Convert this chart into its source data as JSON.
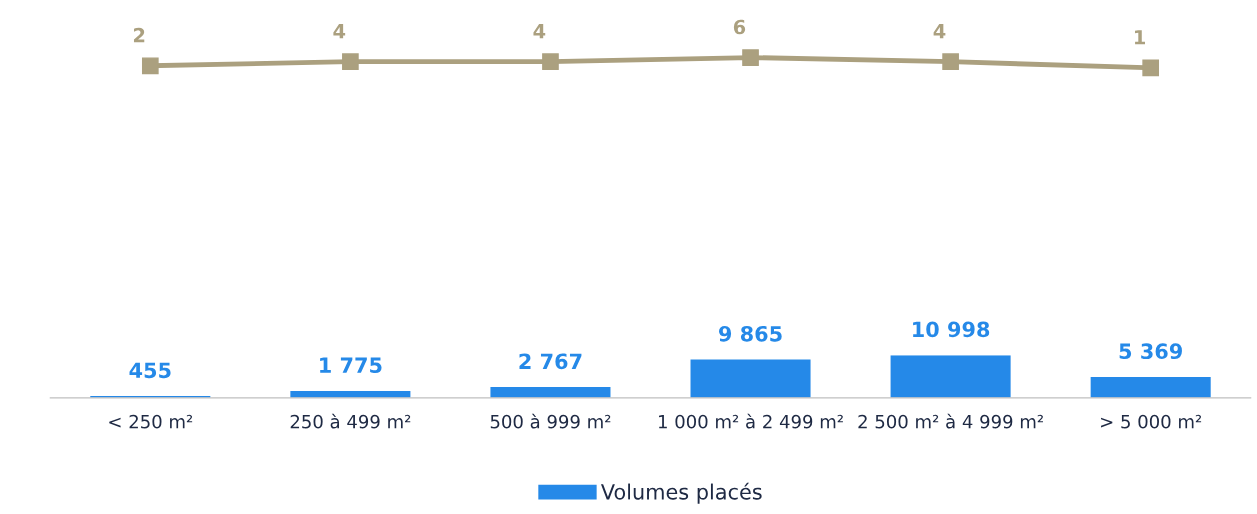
{
  "chart_data": [
    {
      "type": "line",
      "categories": [
        null,
        null,
        null,
        null,
        null,
        null
      ],
      "series": [
        {
          "color": "#aba07f",
          "values": [
            2,
            4,
            4,
            6,
            4,
            1
          ],
          "value_labels": [
            "2",
            "4",
            "4",
            "6",
            "4",
            "1"
          ]
        }
      ],
      "marker": "square",
      "line_style": "solid",
      "tick_labels": false
    },
    {
      "type": "bar",
      "categories": [
        "< 250 m²",
        "250 à 499 m²",
        "500 à 999 m²",
        "1 000 m² à 2 499 m²",
        "2 500 m² à 4 999 m²",
        "> 5 000 m²"
      ],
      "series": [
        {
          "name": "Volumes placés",
          "color": "#2589e8",
          "values": [
            455,
            1775,
            2767,
            9865,
            10998,
            5369
          ],
          "value_labels": [
            "455",
            "1 775",
            "2 767",
            "9 865",
            "10 998",
            "5 369"
          ]
        }
      ],
      "legend": "bottom",
      "tick_labels": "x"
    }
  ]
}
